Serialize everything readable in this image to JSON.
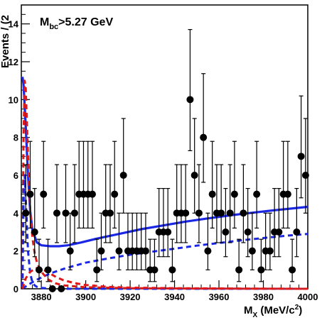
{
  "chart_data": {
    "type": "scatter",
    "annotation": {
      "main": "M",
      "sub": "bc",
      "rest": ">5.27 GeV"
    },
    "xlabel": {
      "main": "M",
      "sub": "X",
      "rest": " (MeV/c",
      "sup": "2",
      "end": ")"
    },
    "ylabel_visible": "Events / (2",
    "x_ticks": [
      "3880",
      "3900",
      "3920",
      "3940",
      "3960",
      "3980",
      "4000"
    ],
    "y_ticks": [
      "0",
      "2",
      "4",
      "6",
      "8",
      "10",
      "12",
      "14"
    ],
    "xlim": [
      3871,
      4000
    ],
    "ylim": [
      0,
      15
    ],
    "series": [
      {
        "kind": "data",
        "color": "#000000",
        "x": [
          3873,
          3875,
          3877,
          3879,
          3881,
          3883,
          3885,
          3887,
          3889,
          3891,
          3893,
          3895,
          3897,
          3899,
          3901,
          3903,
          3905,
          3907,
          3909,
          3911,
          3913,
          3915,
          3917,
          3919,
          3921,
          3923,
          3925,
          3927,
          3929,
          3931,
          3933,
          3935,
          3937,
          3939,
          3941,
          3943,
          3945,
          3947,
          3949,
          3951,
          3953,
          3955,
          3957,
          3959,
          3961,
          3963,
          3965,
          3967,
          3969,
          3971,
          3973,
          3975,
          3977,
          3979,
          3981,
          3983,
          3985,
          3987,
          3989,
          3991,
          3993,
          3995,
          3997,
          3999
        ],
        "y": [
          4,
          5,
          3,
          1,
          5,
          1,
          0,
          4,
          0,
          4,
          2,
          4,
          5,
          5,
          5,
          5,
          1,
          2,
          4,
          4,
          5,
          2,
          6,
          2,
          2,
          2,
          2,
          2,
          1,
          1,
          3,
          3,
          3,
          1,
          4,
          4,
          4,
          10,
          6,
          4,
          8,
          2,
          5,
          4,
          4,
          3,
          4,
          5,
          1,
          4,
          3,
          2,
          5,
          1,
          2,
          2,
          3,
          3,
          5,
          5,
          1,
          3,
          7,
          6
        ]
      },
      {
        "kind": "total-fit",
        "color": "#1a28e6",
        "x": [
          3871.5,
          3872,
          3873,
          3874,
          3875,
          3876,
          3878,
          3880,
          3884,
          3888,
          3892,
          3898,
          3905,
          3915,
          3925,
          3935,
          3945,
          3955,
          3965,
          3975,
          3985,
          3995,
          4000
        ],
        "y": [
          11.2,
          10.8,
          8.6,
          6.0,
          4.1,
          3.1,
          2.45,
          2.3,
          2.25,
          2.25,
          2.3,
          2.45,
          2.65,
          2.9,
          3.15,
          3.35,
          3.55,
          3.72,
          3.88,
          4.02,
          4.15,
          4.27,
          4.33
        ]
      },
      {
        "kind": "background",
        "color": "#1a28e6",
        "x": [
          3871.5,
          3872,
          3874,
          3876,
          3878,
          3881,
          3885,
          3890,
          3895,
          3900,
          3910,
          3920,
          3930,
          3940,
          3950,
          3960,
          3970,
          3980,
          3990,
          4000
        ],
        "y": [
          0,
          0.05,
          0.2,
          0.35,
          0.48,
          0.65,
          0.85,
          1.05,
          1.22,
          1.38,
          1.6,
          1.8,
          1.96,
          2.12,
          2.28,
          2.42,
          2.56,
          2.68,
          2.8,
          2.9
        ]
      },
      {
        "kind": "signal-a",
        "color": "#e01818",
        "x": [
          3871.5,
          3872,
          3872.5,
          3873,
          3874,
          3875,
          3876,
          3877,
          3878,
          3880,
          3883,
          3886,
          3890,
          3900,
          3920,
          3950,
          4000
        ],
        "y": [
          0.1,
          8.0,
          11.0,
          10.6,
          7.0,
          4.2,
          2.7,
          1.9,
          1.4,
          0.9,
          0.5,
          0.3,
          0.18,
          0.08,
          0.03,
          0.01,
          0.0
        ]
      },
      {
        "kind": "signal-b",
        "color": "#1a28e6",
        "x": [
          3871.5,
          3872,
          3872.5,
          3873,
          3874,
          3875,
          3876,
          3877,
          3878,
          3880,
          3883,
          3886,
          3890,
          3900,
          3920,
          3950,
          4000
        ],
        "y": [
          0.1,
          4.5,
          6.0,
          4.8,
          2.0,
          0.8,
          0.35,
          0.18,
          0.1,
          0.05,
          0.02,
          0.01,
          0.0,
          0.0,
          0.0,
          0.0,
          0.0
        ]
      },
      {
        "kind": "signal-c",
        "color": "#e01818",
        "x": [
          3871.5,
          3873,
          3875,
          3878,
          3881,
          3884,
          3887,
          3890,
          3895,
          3900,
          3910,
          3920,
          3940,
          3970,
          4000
        ],
        "y": [
          0.0,
          0.55,
          0.9,
          1.1,
          1.0,
          0.8,
          0.6,
          0.45,
          0.3,
          0.2,
          0.1,
          0.06,
          0.03,
          0.01,
          0.0
        ]
      }
    ]
  }
}
